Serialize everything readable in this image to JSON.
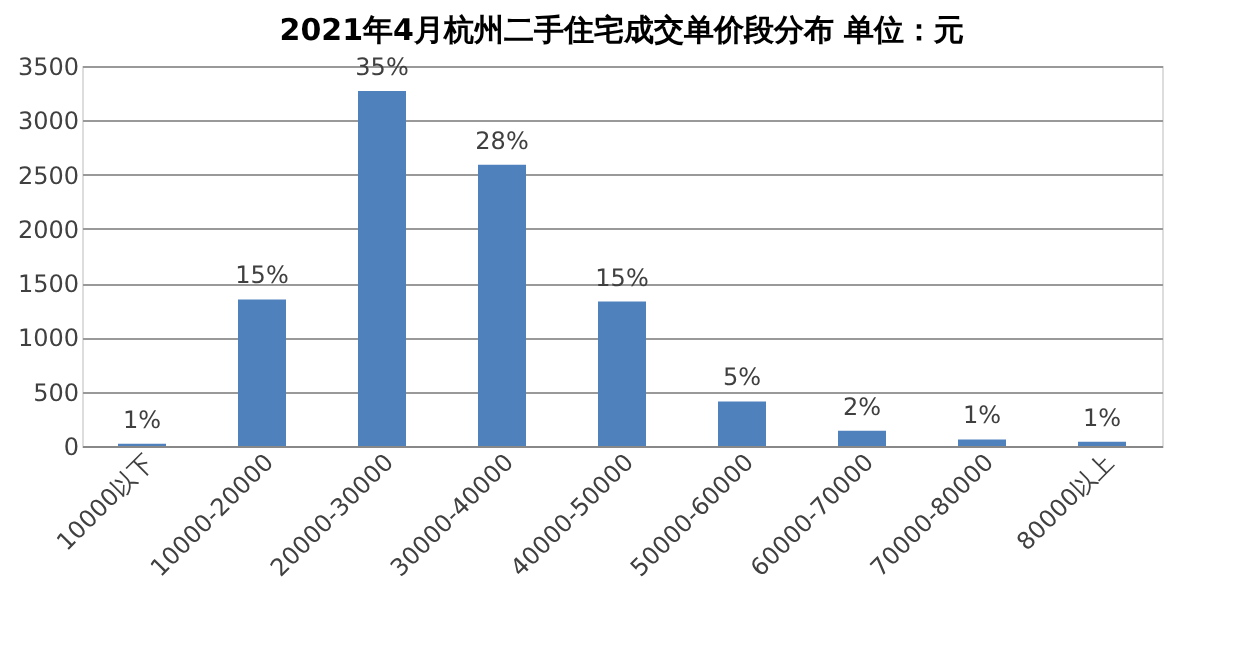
{
  "chart_data": {
    "type": "bar",
    "title": "2021年4月杭州二手住宅成交单价段分布 单位：元",
    "categories": [
      "10000以下",
      "10000-20000",
      "20000-30000",
      "30000-40000",
      "40000-50000",
      "50000-60000",
      "60000-70000",
      "70000-80000",
      "80000以上"
    ],
    "values": [
      20,
      1350,
      3270,
      2590,
      1330,
      410,
      140,
      60,
      40
    ],
    "annotations": [
      {
        "text": "1%",
        "x": "10000以下",
        "y": 20
      },
      {
        "text": "15%",
        "x": "10000-20000",
        "y": 1350
      },
      {
        "text": "35%",
        "x": "20000-30000",
        "y": 3270
      },
      {
        "text": "28%",
        "x": "30000-40000",
        "y": 2590
      },
      {
        "text": "15%",
        "x": "40000-50000",
        "y": 1330
      },
      {
        "text": "5%",
        "x": "50000-60000",
        "y": 410
      },
      {
        "text": "2%",
        "x": "60000-70000",
        "y": 140
      },
      {
        "text": "1%",
        "x": "70000-80000",
        "y": 60
      },
      {
        "text": "1%",
        "x": "80000以上",
        "y": 40
      }
    ],
    "color": "#4f81bd",
    "ylim": [
      0,
      3500
    ],
    "yticks": [
      0,
      500,
      1000,
      1500,
      2000,
      2500,
      3000,
      3500
    ],
    "grid": "y"
  }
}
